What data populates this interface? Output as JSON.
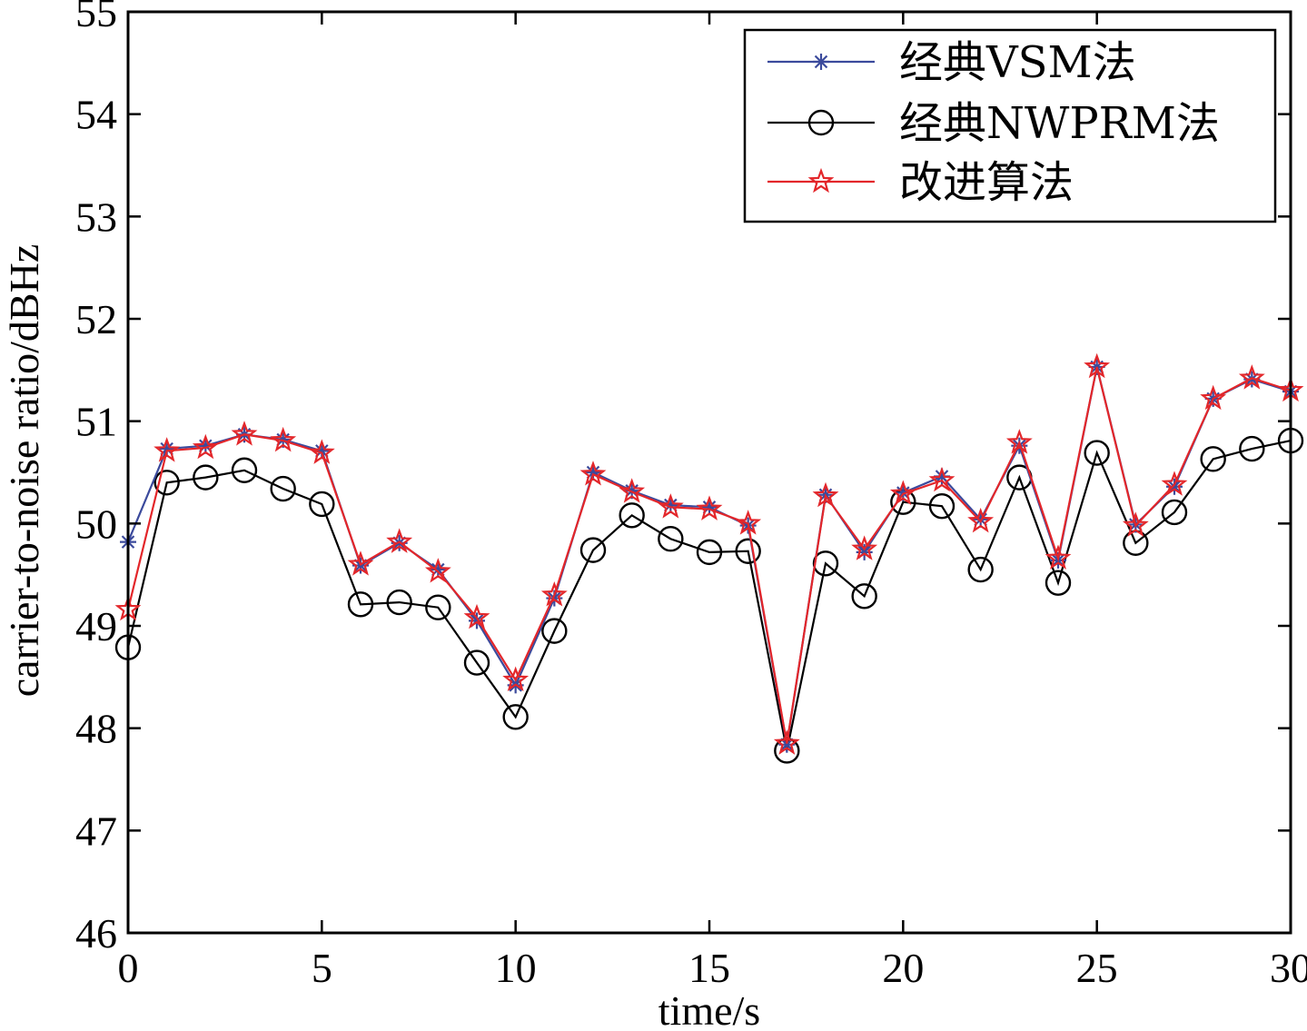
{
  "chart_data": {
    "type": "line",
    "xlabel": "time/s",
    "ylabel": "carrier-to-noise ratio/dBHz",
    "xlim": [
      0,
      30
    ],
    "ylim": [
      46,
      55
    ],
    "x_ticks": [
      0,
      5,
      10,
      15,
      20,
      25,
      30
    ],
    "y_ticks": [
      46,
      47,
      48,
      49,
      50,
      51,
      52,
      53,
      54,
      55
    ],
    "grid": false,
    "legend_position": "top-right",
    "x": [
      0,
      1,
      2,
      3,
      4,
      5,
      6,
      7,
      8,
      9,
      10,
      11,
      12,
      13,
      14,
      15,
      16,
      17,
      18,
      19,
      20,
      21,
      22,
      23,
      24,
      25,
      26,
      27,
      28,
      29,
      30
    ],
    "series": [
      {
        "name": "经典VSM法",
        "color": "#3b4a9c",
        "marker": "asterisk",
        "values": [
          49.82,
          50.73,
          50.76,
          50.87,
          50.82,
          50.71,
          49.59,
          49.81,
          49.55,
          49.05,
          48.42,
          49.27,
          50.5,
          50.32,
          50.18,
          50.16,
          49.98,
          47.84,
          50.28,
          49.72,
          50.3,
          50.46,
          50.04,
          50.76,
          49.64,
          51.53,
          49.99,
          50.36,
          51.22,
          51.41,
          51.29
        ]
      },
      {
        "name": "经典NWPRM法",
        "color": "#000000",
        "marker": "circle",
        "values": [
          48.79,
          50.4,
          50.45,
          50.52,
          50.34,
          50.19,
          49.21,
          49.23,
          49.18,
          48.64,
          48.11,
          48.95,
          49.74,
          50.08,
          49.85,
          49.72,
          49.73,
          47.78,
          49.61,
          49.29,
          50.21,
          50.17,
          49.55,
          50.45,
          49.42,
          50.69,
          49.81,
          50.11,
          50.63,
          50.73,
          50.81
        ]
      },
      {
        "name": "改进算法",
        "color": "#e3262a",
        "marker": "star",
        "values": [
          49.16,
          50.71,
          50.74,
          50.87,
          50.81,
          50.69,
          49.6,
          49.82,
          49.53,
          49.08,
          48.47,
          49.3,
          50.48,
          50.31,
          50.16,
          50.14,
          50.0,
          47.85,
          50.27,
          49.75,
          50.29,
          50.42,
          50.02,
          50.79,
          49.66,
          51.53,
          49.98,
          50.38,
          51.22,
          51.42,
          51.3
        ]
      }
    ]
  }
}
